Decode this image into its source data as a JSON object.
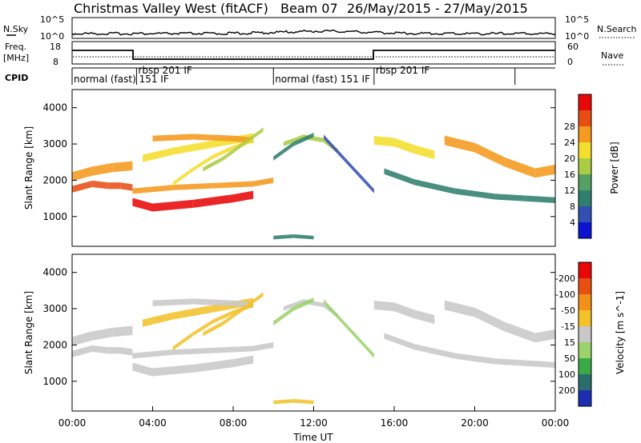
{
  "header": {
    "station": "Christmas Valley West (fitACF)",
    "beam": "Beam 07",
    "dates": "26/May/2015 - 27/May/2015"
  },
  "top_panels": {
    "nsky_label": "N.Sky",
    "nsky_ticks": [
      "10^5",
      "10^0"
    ],
    "nsearch_label": "N.Search",
    "nsearch_ticks": [
      "10^5",
      "10^0"
    ],
    "freq_label": "Freq.",
    "freq_unit": "[MHz]",
    "freq_ticks": [
      "18",
      "8"
    ],
    "nave_label": "Nave",
    "nave_ticks": [
      "60",
      "0"
    ],
    "cpid_label": "CPID"
  },
  "cpid_segments": [
    {
      "label": "normal (fast) 151 IF",
      "start": 0.0,
      "end": 3.2
    },
    {
      "label": "rbsp 201 IF",
      "start": 3.2,
      "end": 10.0
    },
    {
      "label": "normal (fast) 151 IF",
      "start": 10.0,
      "end": 15.0
    },
    {
      "label": "rbsp 201 IF",
      "start": 15.0,
      "end": 22.0
    }
  ],
  "chart_data": [
    {
      "type": "heatmap",
      "name": "power",
      "xlabel": "",
      "ylabel": "Slant Range [km]",
      "xlim": [
        0,
        24
      ],
      "ylim": [
        180,
        4500
      ],
      "yticks": [
        "1000",
        "2000",
        "3000",
        "4000"
      ],
      "colorbar_label": "Power [dB]",
      "colorbar_ticks": [
        "4",
        "8",
        "12",
        "16",
        "20",
        "24",
        "28"
      ],
      "colorbar_colors": [
        "#0a14d2",
        "#3250b4",
        "#2f7f6e",
        "#57a064",
        "#aacc44",
        "#f4de2e",
        "#f59a1e",
        "#e84e14",
        "#e80808"
      ],
      "colorbar_range": [
        0,
        30
      ],
      "bands": [
        {
          "x": [
            0.0,
            1.0,
            2.0,
            3.0
          ],
          "y": [
            2100,
            2250,
            2350,
            2400
          ],
          "w": 250,
          "v": 22
        },
        {
          "x": [
            0.0,
            1.0,
            1.8,
            2.4,
            3.0
          ],
          "y": [
            1750,
            1900,
            1850,
            1850,
            1800
          ],
          "w": 180,
          "v": 24
        },
        {
          "x": [
            3.0,
            4.0,
            6.0,
            8.0,
            9.0
          ],
          "y": [
            1400,
            1250,
            1350,
            1500,
            1600
          ],
          "w": 220,
          "v": 28
        },
        {
          "x": [
            3.0,
            5.0,
            7.0,
            9.0,
            10.0
          ],
          "y": [
            1700,
            1800,
            1850,
            1900,
            2000
          ],
          "w": 150,
          "v": 23
        },
        {
          "x": [
            3.5,
            5.0,
            7.0,
            9.0
          ],
          "y": [
            2600,
            2800,
            3000,
            3200
          ],
          "w": 200,
          "v": 18
        },
        {
          "x": [
            4.0,
            6.0,
            8.0,
            9.0
          ],
          "y": [
            3150,
            3200,
            3150,
            3100
          ],
          "w": 160,
          "v": 21
        },
        {
          "x": [
            5.0,
            6.0,
            7.0,
            8.0,
            9.0
          ],
          "y": [
            1900,
            2300,
            2650,
            2900,
            3100
          ],
          "w": 110,
          "v": 19
        },
        {
          "x": [
            6.5,
            7.5,
            8.5,
            9.5
          ],
          "y": [
            2300,
            2600,
            3000,
            3400
          ],
          "w": 110,
          "v": 14
        },
        {
          "x": [
            10.5,
            11.5,
            12.5,
            13.2
          ],
          "y": [
            3000,
            3200,
            3100,
            2800
          ],
          "w": 120,
          "v": 16
        },
        {
          "x": [
            12.5,
            13.5,
            14.5,
            15.0
          ],
          "y": [
            3200,
            2600,
            2000,
            1700
          ],
          "w": 120,
          "v": 6
        },
        {
          "x": [
            10.0,
            11.0,
            12.0
          ],
          "y": [
            2600,
            3000,
            3250
          ],
          "w": 120,
          "v": 7
        },
        {
          "x": [
            15.0,
            16.0,
            17.0,
            18.0
          ],
          "y": [
            3100,
            3050,
            2850,
            2700
          ],
          "w": 240,
          "v": 17
        },
        {
          "x": [
            15.5,
            17.0,
            19.0,
            21.0,
            22.5,
            24.0
          ],
          "y": [
            2250,
            1950,
            1700,
            1550,
            1500,
            1450
          ],
          "w": 160,
          "v": 7
        },
        {
          "x": [
            18.5,
            20.0,
            21.5,
            23.0,
            24.0
          ],
          "y": [
            3100,
            2900,
            2500,
            2200,
            2300
          ],
          "w": 260,
          "v": 21
        },
        {
          "x": [
            10.0,
            11.0,
            12.0
          ],
          "y": [
            420,
            460,
            420
          ],
          "w": 100,
          "v": 9
        }
      ]
    },
    {
      "type": "heatmap",
      "name": "velocity",
      "xlabel": "Time UT",
      "ylabel": "Slant Range [km]",
      "xlim": [
        0,
        24
      ],
      "ylim": [
        180,
        4500
      ],
      "xticks": [
        "00:00",
        "04:00",
        "08:00",
        "12:00",
        "16:00",
        "20:00",
        "00:00"
      ],
      "yticks": [
        "1000",
        "2000",
        "3000",
        "4000"
      ],
      "colorbar_label": "Velocity [m s^-1]",
      "colorbar_ticks": [
        "200",
        "100",
        "50",
        "15",
        "-15",
        "-50",
        "-100",
        "-200"
      ],
      "colorbar_colors": [
        "#1c2fb0",
        "#2a6e6c",
        "#3aaa46",
        "#9bd36a",
        "#c8c8c8",
        "#f3c22a",
        "#f39018",
        "#e85012",
        "#e80808"
      ],
      "colorbar_range": [
        -250,
        250
      ],
      "bands": [
        {
          "x": [
            0.0,
            1.0,
            2.0,
            3.0
          ],
          "y": [
            2100,
            2250,
            2350,
            2400
          ],
          "w": 250,
          "v": 0
        },
        {
          "x": [
            0.0,
            1.0,
            1.8,
            2.4,
            3.0
          ],
          "y": [
            1750,
            1900,
            1850,
            1850,
            1800
          ],
          "w": 180,
          "v": 0
        },
        {
          "x": [
            3.0,
            4.0,
            6.0,
            8.0,
            9.0
          ],
          "y": [
            1400,
            1250,
            1350,
            1500,
            1600
          ],
          "w": 220,
          "v": 0
        },
        {
          "x": [
            3.0,
            5.0,
            7.0,
            9.0,
            10.0
          ],
          "y": [
            1700,
            1800,
            1850,
            1900,
            2000
          ],
          "w": 150,
          "v": 0
        },
        {
          "x": [
            3.5,
            5.0,
            7.0,
            9.0
          ],
          "y": [
            2600,
            2800,
            3000,
            3200
          ],
          "w": 200,
          "v": -60
        },
        {
          "x": [
            4.0,
            6.0,
            8.0,
            9.0
          ],
          "y": [
            3150,
            3200,
            3150,
            3100
          ],
          "w": 160,
          "v": 0
        },
        {
          "x": [
            5.0,
            6.0,
            7.0,
            8.0,
            9.0
          ],
          "y": [
            1900,
            2300,
            2650,
            2900,
            3100
          ],
          "w": 110,
          "v": -80
        },
        {
          "x": [
            6.5,
            7.5,
            8.5,
            9.5
          ],
          "y": [
            2300,
            2600,
            3000,
            3400
          ],
          "w": 110,
          "v": -70
        },
        {
          "x": [
            10.5,
            11.5,
            12.5,
            13.2
          ],
          "y": [
            3000,
            3200,
            3100,
            2800
          ],
          "w": 120,
          "v": 0
        },
        {
          "x": [
            12.5,
            13.5,
            14.5,
            15.0
          ],
          "y": [
            3200,
            2600,
            2000,
            1700
          ],
          "w": 120,
          "v": 40
        },
        {
          "x": [
            10.0,
            11.0,
            12.0
          ],
          "y": [
            2600,
            3000,
            3250
          ],
          "w": 120,
          "v": 30
        },
        {
          "x": [
            15.0,
            16.0,
            17.0,
            18.0
          ],
          "y": [
            3100,
            3050,
            2850,
            2700
          ],
          "w": 240,
          "v": 0
        },
        {
          "x": [
            15.5,
            17.0,
            19.0,
            21.0,
            22.5,
            24.0
          ],
          "y": [
            2250,
            1950,
            1700,
            1550,
            1500,
            1450
          ],
          "w": 160,
          "v": 0
        },
        {
          "x": [
            18.5,
            20.0,
            21.5,
            23.0,
            24.0
          ],
          "y": [
            3100,
            2900,
            2500,
            2200,
            2300
          ],
          "w": 260,
          "v": 0
        },
        {
          "x": [
            10.0,
            11.0,
            12.0
          ],
          "y": [
            420,
            460,
            420
          ],
          "w": 100,
          "v": -80
        }
      ]
    }
  ]
}
